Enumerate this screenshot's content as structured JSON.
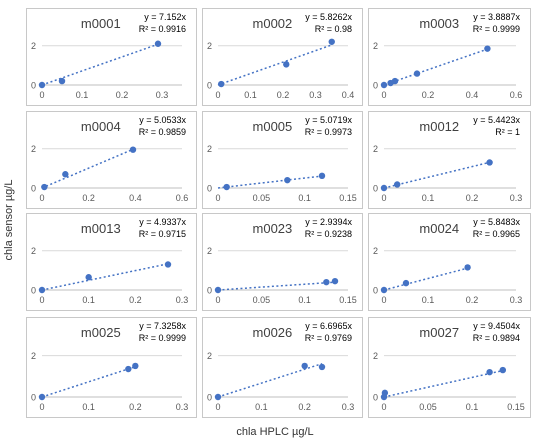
{
  "axis_titles": {
    "y": "chla sensor µg/L",
    "x": "chla HPLC µg/L"
  },
  "colors": {
    "marker": "#4472c4",
    "trendline": "#4472c4",
    "panel_border": "#c8c8c8",
    "axis_text": "#595959",
    "gridline": "#d9d9d9"
  },
  "chart_data": [
    {
      "type": "scatter",
      "title": "m0001",
      "equation": "y = 7.152x",
      "r2": "R² = 0.9916",
      "slope": 7.152,
      "x": [
        0,
        0.05,
        0.29
      ],
      "y": [
        0,
        0.2,
        2.1
      ],
      "xlim": [
        0,
        0.35
      ],
      "xticks": [
        0,
        0.1,
        0.2,
        0.3
      ],
      "xtick_labels": [
        "0",
        "0.1",
        "0.2",
        "0.3"
      ],
      "ylim": [
        0,
        2.8
      ],
      "yticks": [
        0,
        2
      ],
      "ytick_labels": [
        "0",
        "2"
      ],
      "grid": "horizontal",
      "trendline": "linear through origin"
    },
    {
      "type": "scatter",
      "title": "m0002",
      "equation": "y = 5.8262x",
      "r2": "R² = 0.98",
      "slope": 5.8262,
      "x": [
        0.01,
        0.21,
        0.35
      ],
      "y": [
        0.05,
        1.05,
        2.2
      ],
      "xlim": [
        0,
        0.4
      ],
      "xticks": [
        0,
        0.1,
        0.2,
        0.3,
        0.4
      ],
      "xtick_labels": [
        "0",
        "0.1",
        "0.2",
        "0.3",
        "0.4"
      ],
      "ylim": [
        0,
        2.8
      ],
      "yticks": [
        0,
        2
      ],
      "ytick_labels": [
        "0",
        "2"
      ],
      "grid": "horizontal",
      "trendline": "linear through origin"
    },
    {
      "type": "scatter",
      "title": "m0003",
      "equation": "y = 3.8887x",
      "r2": "R² = 0.9999",
      "slope": 3.8887,
      "x": [
        0,
        0.03,
        0.05,
        0.15,
        0.47
      ],
      "y": [
        0,
        0.1,
        0.2,
        0.58,
        1.85
      ],
      "xlim": [
        0,
        0.6
      ],
      "xticks": [
        0,
        0.2,
        0.4,
        0.6
      ],
      "xtick_labels": [
        "0",
        "0.2",
        "0.4",
        "0.6"
      ],
      "ylim": [
        0,
        2.8
      ],
      "yticks": [
        0,
        2
      ],
      "ytick_labels": [
        "0",
        "2"
      ],
      "grid": "horizontal",
      "trendline": "linear through origin"
    },
    {
      "type": "scatter",
      "title": "m0004",
      "equation": "y = 5.0533x",
      "r2": "R² = 0.9859",
      "slope": 5.0533,
      "x": [
        0.01,
        0.1,
        0.39
      ],
      "y": [
        0.05,
        0.7,
        1.95
      ],
      "xlim": [
        0,
        0.6
      ],
      "xticks": [
        0,
        0.2,
        0.4,
        0.6
      ],
      "xtick_labels": [
        "0",
        "0.2",
        "0.4",
        "0.6"
      ],
      "ylim": [
        0,
        2.8
      ],
      "yticks": [
        0,
        2
      ],
      "ytick_labels": [
        "0",
        "2"
      ],
      "grid": "horizontal",
      "trendline": "linear through origin"
    },
    {
      "type": "scatter",
      "title": "m0005",
      "equation": "y = 5.0719x",
      "r2": "R² = 0.9973",
      "slope": 5.0719,
      "x": [
        0.01,
        0.08,
        0.12
      ],
      "y": [
        0.05,
        0.4,
        0.62
      ],
      "xlim": [
        0,
        0.15
      ],
      "xticks": [
        0,
        0.05,
        0.1,
        0.15
      ],
      "xtick_labels": [
        "0",
        "0.05",
        "0.1",
        "0.15"
      ],
      "ylim": [
        0,
        2.8
      ],
      "yticks": [
        0,
        2
      ],
      "ytick_labels": [
        "0",
        "2"
      ],
      "grid": "horizontal",
      "trendline": "linear through origin"
    },
    {
      "type": "scatter",
      "title": "m0012",
      "equation": "y = 5.4423x",
      "r2": "R² = 1",
      "slope": 5.4423,
      "x": [
        0,
        0.03,
        0.24
      ],
      "y": [
        0,
        0.18,
        1.3
      ],
      "xlim": [
        0,
        0.3
      ],
      "xticks": [
        0,
        0.1,
        0.2,
        0.3
      ],
      "xtick_labels": [
        "0",
        "0.1",
        "0.2",
        "0.3"
      ],
      "ylim": [
        0,
        2.8
      ],
      "yticks": [
        0,
        2
      ],
      "ytick_labels": [
        "0",
        "2"
      ],
      "grid": "horizontal",
      "trendline": "linear through origin"
    },
    {
      "type": "scatter",
      "title": "m0013",
      "equation": "y = 4.9337x",
      "r2": "R² = 0.9715",
      "slope": 4.9337,
      "x": [
        0,
        0.1,
        0.27
      ],
      "y": [
        0,
        0.65,
        1.3
      ],
      "xlim": [
        0,
        0.3
      ],
      "xticks": [
        0,
        0.1,
        0.2,
        0.3
      ],
      "xtick_labels": [
        "0",
        "0.1",
        "0.2",
        "0.3"
      ],
      "ylim": [
        0,
        2.8
      ],
      "yticks": [
        0,
        2
      ],
      "ytick_labels": [
        "0",
        "2"
      ],
      "grid": "horizontal",
      "trendline": "linear through origin"
    },
    {
      "type": "scatter",
      "title": "m0023",
      "equation": "y = 2.9394x",
      "r2": "R² = 0.9238",
      "slope": 2.9394,
      "x": [
        0,
        0.125,
        0.135
      ],
      "y": [
        0,
        0.4,
        0.45
      ],
      "xlim": [
        0,
        0.15
      ],
      "xticks": [
        0,
        0.05,
        0.1,
        0.15
      ],
      "xtick_labels": [
        "0",
        "0.05",
        "0.1",
        "0.15"
      ],
      "ylim": [
        0,
        2.8
      ],
      "yticks": [
        0,
        2
      ],
      "ytick_labels": [
        "0",
        "2"
      ],
      "grid": "horizontal",
      "trendline": "linear through origin"
    },
    {
      "type": "scatter",
      "title": "m0024",
      "equation": "y = 5.8483x",
      "r2": "R² = 0.9965",
      "slope": 5.8483,
      "x": [
        0,
        0.05,
        0.19
      ],
      "y": [
        0,
        0.35,
        1.15
      ],
      "xlim": [
        0,
        0.3
      ],
      "xticks": [
        0,
        0.1,
        0.2,
        0.3
      ],
      "xtick_labels": [
        "0",
        "0.1",
        "0.2",
        "0.3"
      ],
      "ylim": [
        0,
        2.8
      ],
      "yticks": [
        0,
        2
      ],
      "ytick_labels": [
        "0",
        "2"
      ],
      "grid": "horizontal",
      "trendline": "linear through origin"
    },
    {
      "type": "scatter",
      "title": "m0025",
      "equation": "y = 7.3258x",
      "r2": "R² = 0.9999",
      "slope": 7.3258,
      "x": [
        0,
        0.185,
        0.2
      ],
      "y": [
        0,
        1.35,
        1.5
      ],
      "xlim": [
        0,
        0.3
      ],
      "xticks": [
        0,
        0.1,
        0.2,
        0.3
      ],
      "xtick_labels": [
        "0",
        "0.1",
        "0.2",
        "0.3"
      ],
      "ylim": [
        0,
        2.8
      ],
      "yticks": [
        0,
        2
      ],
      "ytick_labels": [
        "0",
        "2"
      ],
      "grid": "horizontal",
      "trendline": "linear through origin"
    },
    {
      "type": "scatter",
      "title": "m0026",
      "equation": "y = 6.6965x",
      "r2": "R² = 0.9769",
      "slope": 6.6965,
      "x": [
        0,
        0.2,
        0.24
      ],
      "y": [
        0,
        1.5,
        1.45
      ],
      "xlim": [
        0,
        0.3
      ],
      "xticks": [
        0,
        0.1,
        0.2,
        0.3
      ],
      "xtick_labels": [
        "0",
        "0.1",
        "0.2",
        "0.3"
      ],
      "ylim": [
        0,
        2.8
      ],
      "yticks": [
        0,
        2
      ],
      "ytick_labels": [
        "0",
        "2"
      ],
      "grid": "horizontal",
      "trendline": "linear through origin"
    },
    {
      "type": "scatter",
      "title": "m0027",
      "equation": "y = 9.4504x",
      "r2": "R² = 0.9894",
      "slope": 9.4504,
      "x": [
        0,
        0.001,
        0.12,
        0.135
      ],
      "y": [
        0,
        0.2,
        1.2,
        1.3
      ],
      "xlim": [
        0,
        0.15
      ],
      "xticks": [
        0,
        0.05,
        0.1,
        0.15
      ],
      "xtick_labels": [
        "0",
        "0.05",
        "0.1",
        "0.15"
      ],
      "ylim": [
        0,
        2.8
      ],
      "yticks": [
        0,
        2
      ],
      "ytick_labels": [
        "0",
        "2"
      ],
      "grid": "horizontal",
      "trendline": "linear through origin"
    }
  ]
}
